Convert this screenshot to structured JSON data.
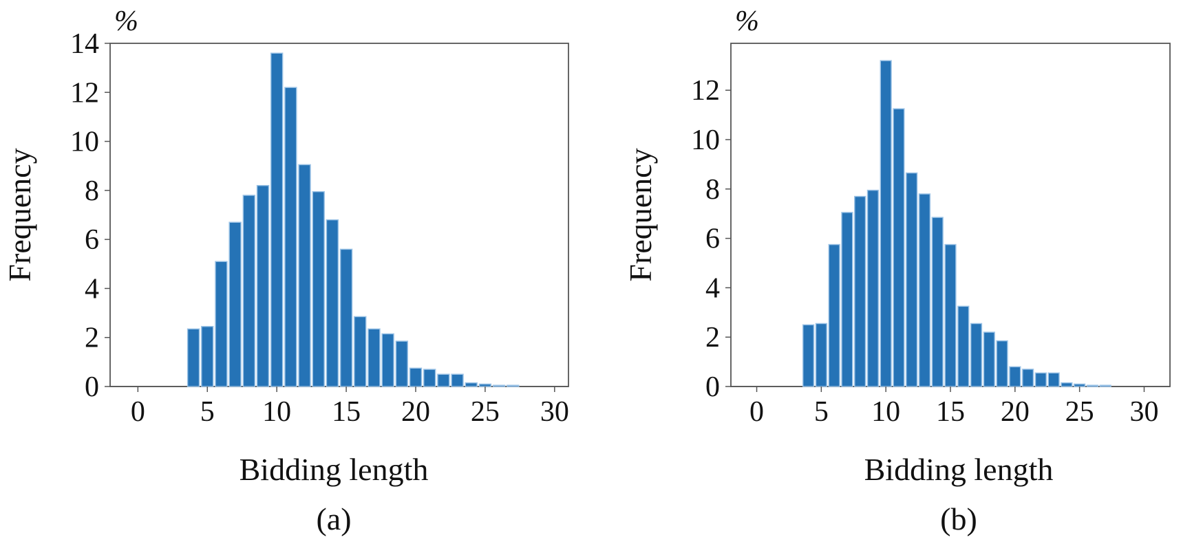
{
  "chart_data": [
    {
      "type": "bar",
      "unit": "%",
      "xlabel": "Bidding length",
      "ylabel": "Frequency",
      "caption": "(a)",
      "xlim": [
        -2,
        31
      ],
      "ylim": [
        0,
        14
      ],
      "xticks": [
        0,
        5,
        10,
        15,
        20,
        25,
        30
      ],
      "yticks": [
        0,
        2,
        4,
        6,
        8,
        10,
        12,
        14
      ],
      "x": [
        4,
        5,
        6,
        7,
        8,
        9,
        10,
        11,
        12,
        13,
        14,
        15,
        16,
        17,
        18,
        19,
        20,
        21,
        22,
        23,
        24,
        25,
        26,
        27
      ],
      "values": [
        2.35,
        2.45,
        5.1,
        6.7,
        7.8,
        8.2,
        13.6,
        12.2,
        9.05,
        7.95,
        6.8,
        5.6,
        2.85,
        2.35,
        2.15,
        1.85,
        0.75,
        0.7,
        0.5,
        0.5,
        0.15,
        0.1,
        0.05,
        0.05
      ],
      "bar_color": "#2573b6"
    },
    {
      "type": "bar",
      "unit": "%",
      "xlabel": "Bidding length",
      "ylabel": "Frequency",
      "caption": "(b)",
      "xlim": [
        -2,
        32
      ],
      "ylim": [
        0,
        13.9
      ],
      "xticks": [
        0,
        5,
        10,
        15,
        20,
        25,
        30
      ],
      "yticks": [
        0,
        2,
        4,
        6,
        8,
        10,
        12
      ],
      "x": [
        4,
        5,
        6,
        7,
        8,
        9,
        10,
        11,
        12,
        13,
        14,
        15,
        16,
        17,
        18,
        19,
        20,
        21,
        22,
        23,
        24,
        25,
        26,
        27
      ],
      "values": [
        2.5,
        2.55,
        5.75,
        7.05,
        7.7,
        7.95,
        13.2,
        11.25,
        8.65,
        7.8,
        6.85,
        5.75,
        3.25,
        2.55,
        2.2,
        1.85,
        0.8,
        0.7,
        0.55,
        0.55,
        0.15,
        0.1,
        0.05,
        0.05
      ],
      "bar_color": "#2573b6"
    }
  ]
}
